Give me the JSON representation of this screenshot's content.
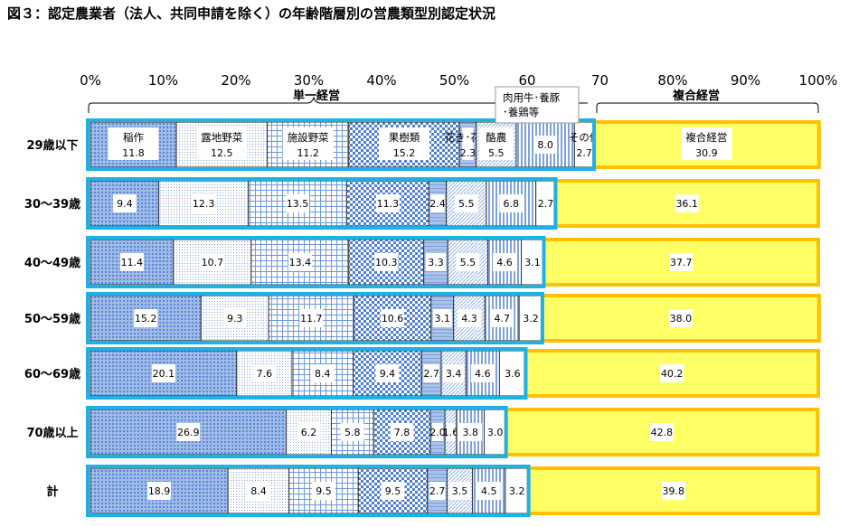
{
  "chart_data": {
    "type": "bar",
    "orientation": "horizontal",
    "stacked": true,
    "title": "図３：認定農業者（法人、共同申請を除く）の年齢階層別の営農類型別認定状況",
    "xlim": [
      0,
      100
    ],
    "x_ticks": [
      "0%",
      "10%",
      "20%",
      "30%",
      "40%",
      "50%",
      "60",
      "70",
      "80%",
      "90%",
      "100%"
    ],
    "grid": false,
    "group_labels": {
      "single": "単一経営",
      "complex": "複合経営"
    },
    "categories": [
      "29歳以下",
      "30～39歳",
      "40～49歳",
      "50～59歳",
      "60～69歳",
      "70歳以上",
      "計"
    ],
    "series": [
      {
        "name": "稲作",
        "values": [
          11.8,
          9.4,
          11.4,
          15.2,
          20.1,
          26.9,
          18.9
        ]
      },
      {
        "name": "露地野菜",
        "values": [
          12.5,
          12.3,
          10.7,
          9.3,
          7.6,
          6.2,
          8.4
        ]
      },
      {
        "name": "施設野菜",
        "values": [
          11.2,
          13.5,
          13.4,
          11.7,
          8.4,
          5.8,
          9.5
        ]
      },
      {
        "name": "果樹類",
        "values": [
          15.2,
          11.3,
          10.3,
          10.6,
          9.4,
          7.8,
          9.5
        ]
      },
      {
        "name": "花き･花木",
        "values": [
          2.3,
          2.4,
          3.3,
          3.1,
          2.7,
          2.0,
          2.7
        ]
      },
      {
        "name": "酪農",
        "values": [
          5.5,
          5.5,
          5.5,
          4.3,
          3.4,
          1.6,
          3.5
        ]
      },
      {
        "name": "肉用牛･養豚･養鶏等",
        "values": [
          8.0,
          6.8,
          4.6,
          4.7,
          4.6,
          3.8,
          4.5
        ]
      },
      {
        "name": "その他",
        "values": [
          2.7,
          2.7,
          3.1,
          3.2,
          3.6,
          3.0,
          3.2
        ]
      },
      {
        "name": "複合経営",
        "values": [
          30.9,
          36.1,
          37.7,
          38.0,
          40.2,
          42.8,
          39.8
        ]
      }
    ],
    "callout_label_lines": [
      "肉用牛･養豚",
      "･養鶏等"
    ],
    "colors": {
      "single_border": "#1fb0e6",
      "complex_border": "#ffc000",
      "complex_fill": "#ffff66",
      "pattern": "#4a7fd0"
    }
  }
}
